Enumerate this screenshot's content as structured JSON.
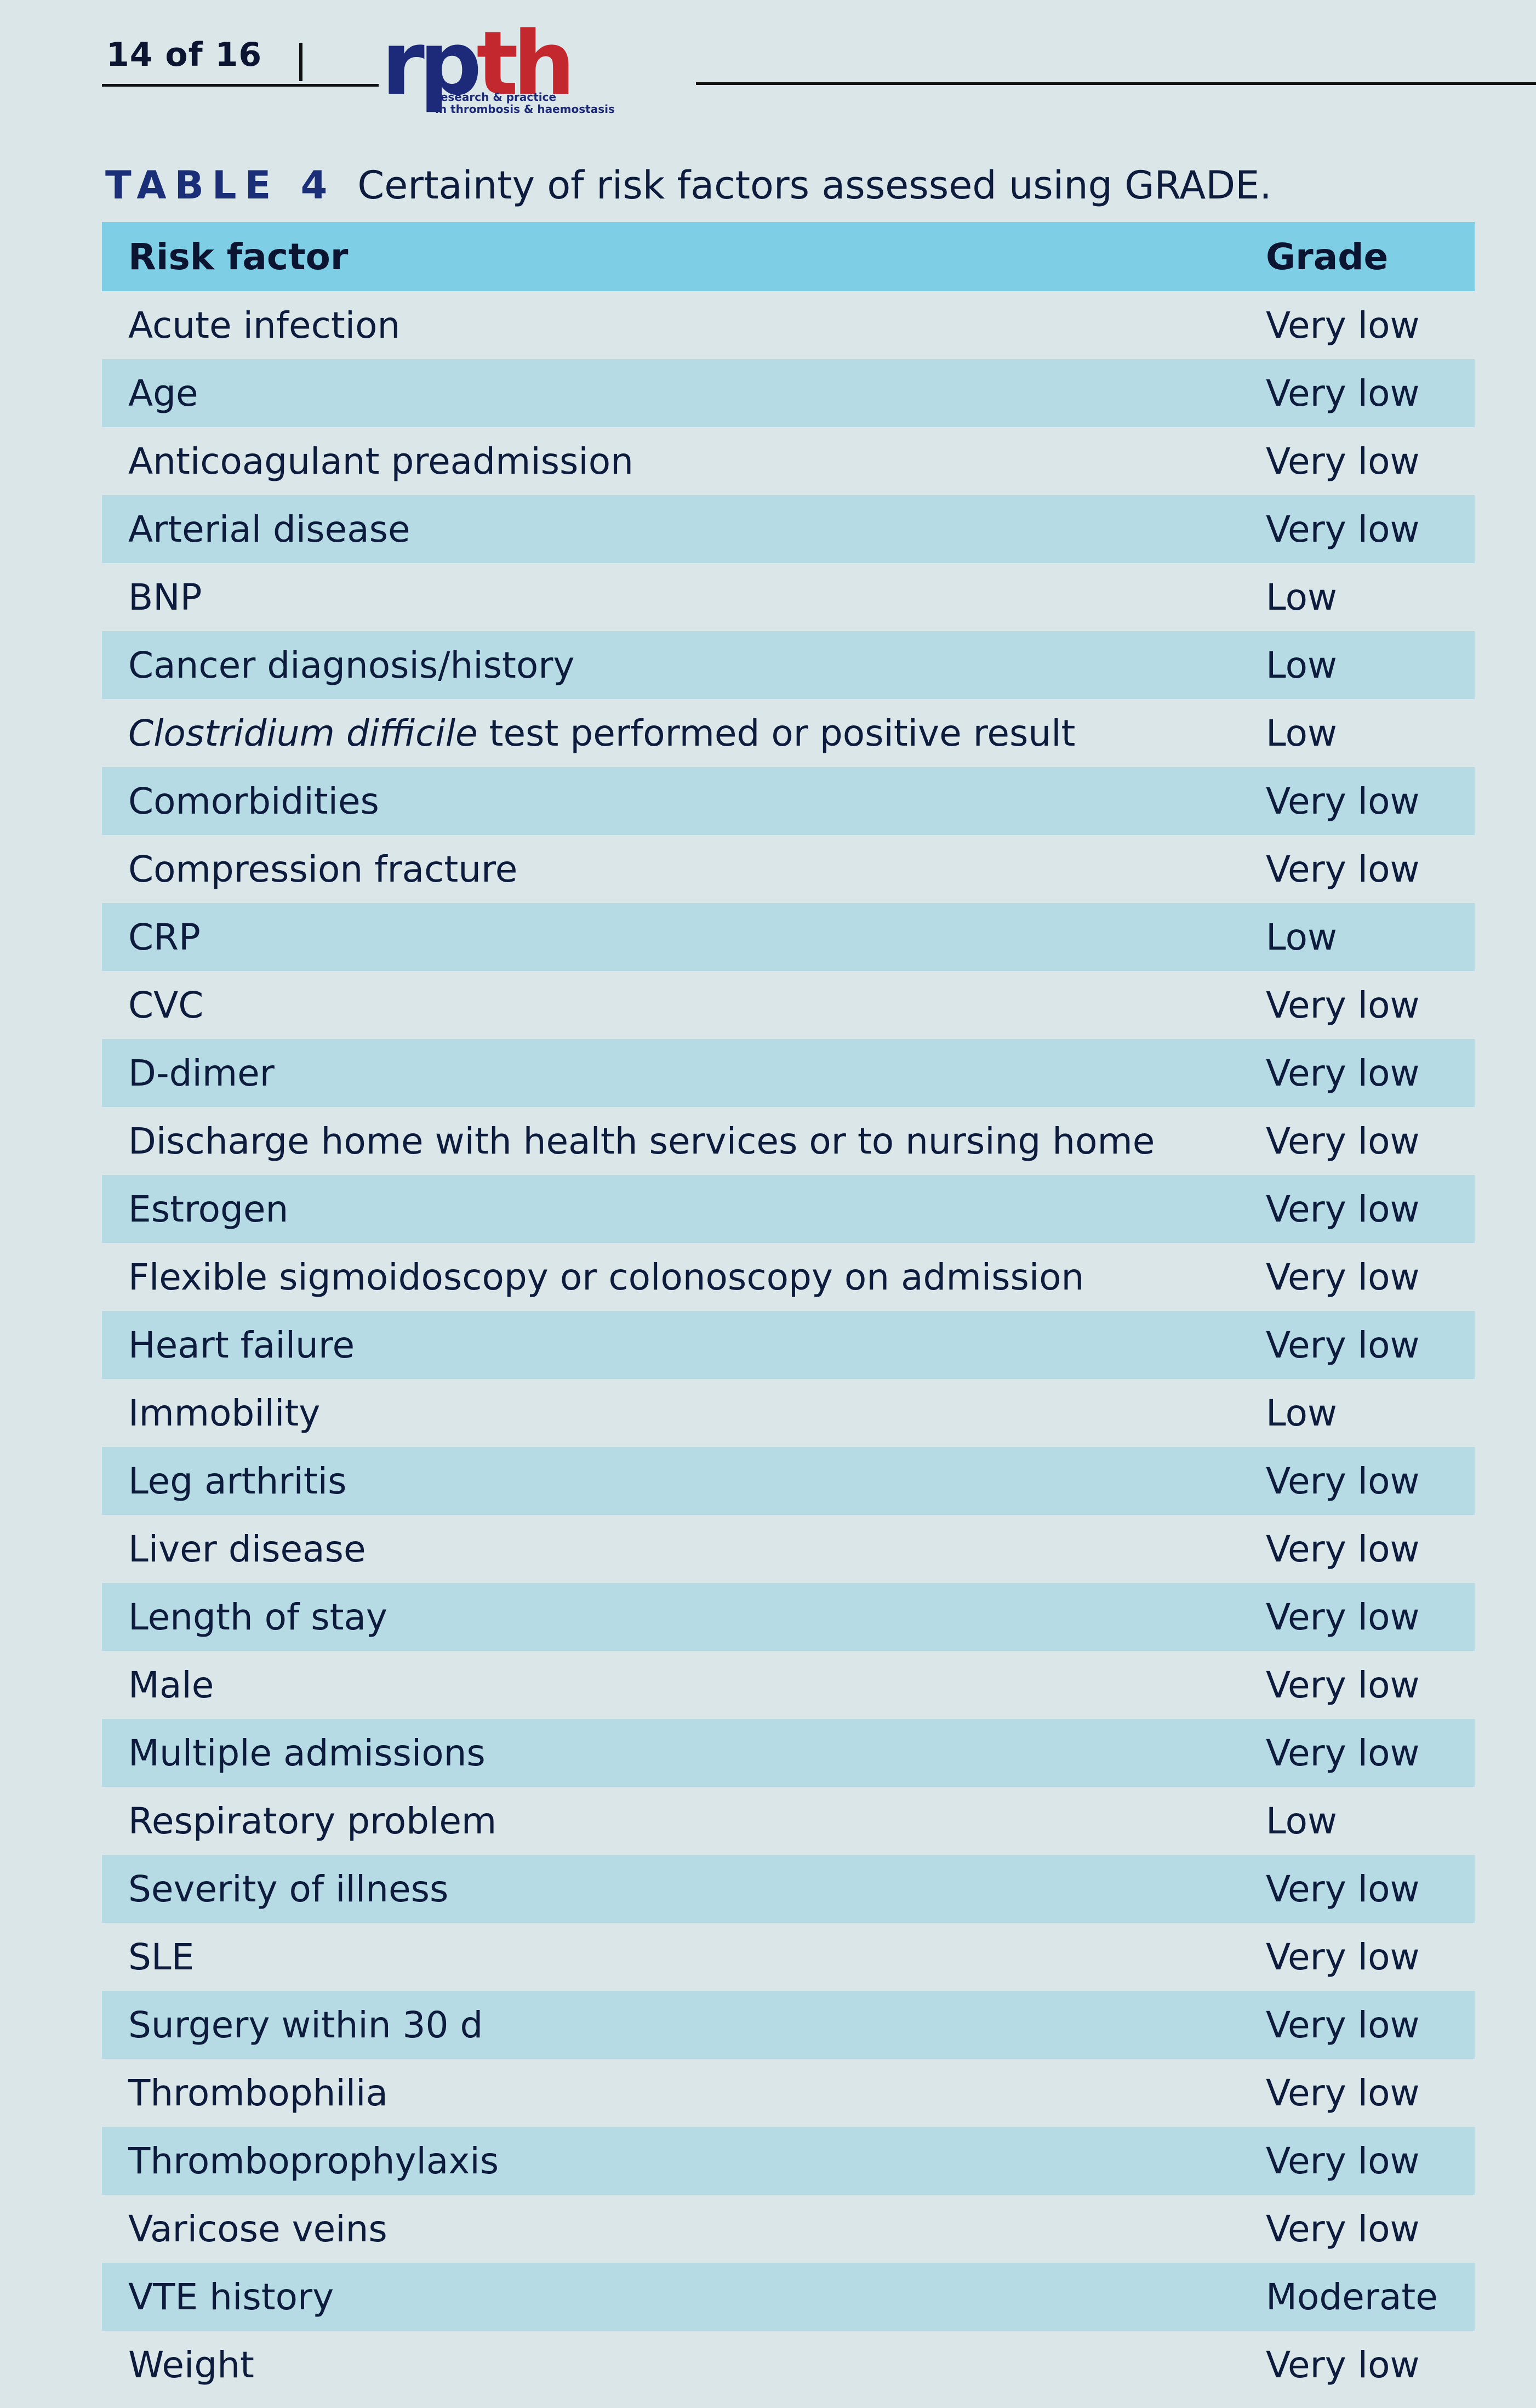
{
  "header": {
    "page_number": "14 of 16",
    "logo_rp": "rp",
    "logo_th": "th",
    "logo_tagline": "research & practice\nin thrombosis & haemostasis"
  },
  "caption": {
    "label": "TABLE 4",
    "text": "Certainty of risk factors assessed using GRADE."
  },
  "table": {
    "columns": [
      "Risk factor",
      "Grade"
    ],
    "rows": [
      {
        "factor": "Acute infection",
        "grade": "Very low"
      },
      {
        "factor": "Age",
        "grade": "Very low"
      },
      {
        "factor": "Anticoagulant preadmission",
        "grade": "Very low"
      },
      {
        "factor": "Arterial disease",
        "grade": "Very low"
      },
      {
        "factor": "BNP",
        "grade": "Low"
      },
      {
        "factor": "Cancer diagnosis/history",
        "grade": "Low"
      },
      {
        "factor_italic": "Clostridium difficile",
        "factor_rest": " test performed or positive result",
        "grade": "Low"
      },
      {
        "factor": "Comorbidities",
        "grade": "Very low"
      },
      {
        "factor": "Compression fracture",
        "grade": "Very low"
      },
      {
        "factor": "CRP",
        "grade": "Low"
      },
      {
        "factor": "CVC",
        "grade": "Very low"
      },
      {
        "factor": "D-dimer",
        "grade": "Very low"
      },
      {
        "factor": "Discharge home with health services or to nursing home",
        "grade": "Very low"
      },
      {
        "factor": "Estrogen",
        "grade": "Very low"
      },
      {
        "factor": "Flexible sigmoidoscopy or colonoscopy on admission",
        "grade": "Very low"
      },
      {
        "factor": "Heart failure",
        "grade": "Very low"
      },
      {
        "factor": "Immobility",
        "grade": "Low"
      },
      {
        "factor": "Leg arthritis",
        "grade": "Very low"
      },
      {
        "factor": "Liver disease",
        "grade": "Very low"
      },
      {
        "factor": "Length of stay",
        "grade": "Very low"
      },
      {
        "factor": "Male",
        "grade": "Very low"
      },
      {
        "factor": "Multiple admissions",
        "grade": "Very low"
      },
      {
        "factor": "Respiratory problem",
        "grade": "Low"
      },
      {
        "factor": "Severity of illness",
        "grade": "Very low"
      },
      {
        "factor": "SLE",
        "grade": "Very low"
      },
      {
        "factor": "Surgery within 30 d",
        "grade": "Very low"
      },
      {
        "factor": "Thrombophilia",
        "grade": "Very low"
      },
      {
        "factor": "Thromboprophylaxis",
        "grade": "Very low"
      },
      {
        "factor": "Varicose veins",
        "grade": "Very low"
      },
      {
        "factor": "VTE history",
        "grade": "Moderate"
      },
      {
        "factor": "Weight",
        "grade": "Very low"
      }
    ]
  }
}
